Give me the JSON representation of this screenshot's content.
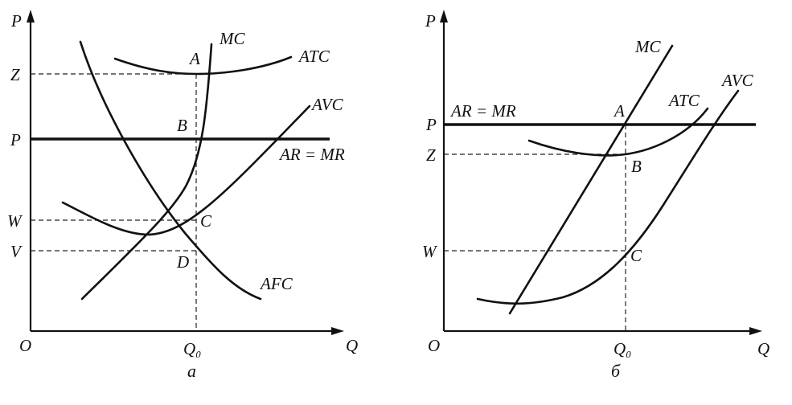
{
  "panel_a": {
    "y_axis": "P",
    "x_axis": "Q",
    "origin": "O",
    "x_tick": "Q₀",
    "y_ticks": {
      "z": "Z",
      "p": "P",
      "w": "W",
      "v": "V"
    },
    "curves": {
      "mc": "MC",
      "atc": "ATC",
      "avc": "AVC",
      "afc": "AFC",
      "ar_mr": "AR = MR"
    },
    "points": {
      "a": "A",
      "b": "B",
      "c": "C",
      "d": "D"
    },
    "caption": "а"
  },
  "panel_b": {
    "y_axis": "P",
    "x_axis": "Q",
    "origin": "O",
    "x_tick": "Q₀",
    "y_ticks": {
      "p": "P",
      "z": "Z",
      "w": "W"
    },
    "curves": {
      "mc": "MC",
      "atc": "ATC",
      "avc": "AVC",
      "ar_mr": "AR = MR"
    },
    "points": {
      "a": "A",
      "b": "B",
      "c": "C"
    },
    "caption": "б"
  },
  "colors": {
    "ink": "#111111",
    "background": "#ffffff"
  }
}
